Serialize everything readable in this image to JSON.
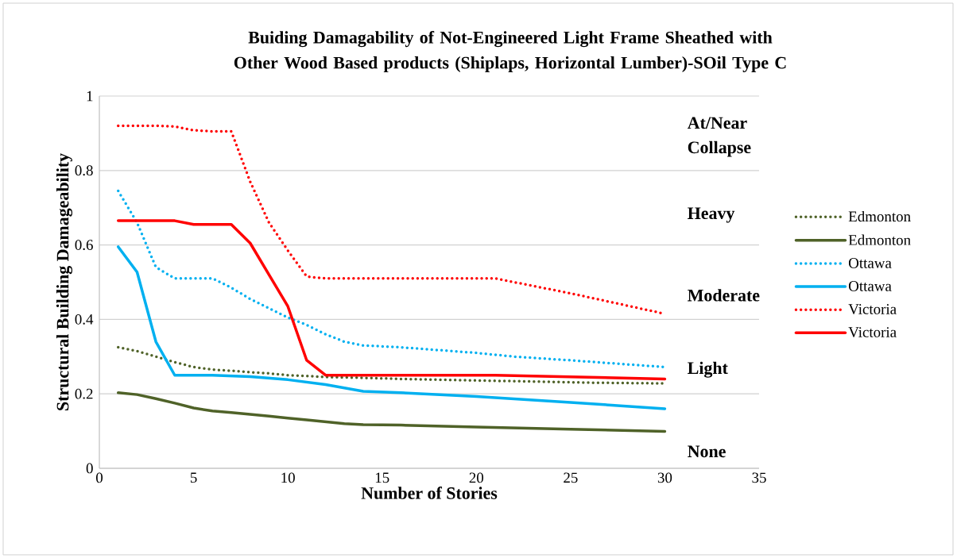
{
  "chart_data": {
    "type": "line",
    "title": "Buiding Damagability of Not-Engineered Light Frame Sheathed with Other Wood Based products (Shiplaps, Horizontal Lumber)-SOil Type C",
    "xlabel": "Number of Stories",
    "ylabel": "Structural Building Damageability",
    "xlim": [
      0,
      35
    ],
    "xticks": [
      0,
      5,
      10,
      15,
      20,
      25,
      30,
      35
    ],
    "ylim": [
      0,
      1
    ],
    "yticks": [
      0,
      0.2,
      0.4,
      0.6,
      0.8,
      1
    ],
    "grid": "y",
    "legend": "right",
    "annotations": [
      "At/Near Collapse",
      "Heavy",
      "Moderate",
      "Light",
      "None"
    ],
    "series": [
      {
        "name": "Edmonton",
        "color": "#4f6228",
        "line_style": "dotted",
        "x": [
          1,
          2,
          3,
          4,
          5,
          6,
          7,
          8,
          9,
          10,
          11,
          12,
          14,
          16,
          18,
          20,
          22,
          24,
          26,
          28,
          30
        ],
        "values": [
          0.325,
          0.315,
          0.3,
          0.285,
          0.272,
          0.265,
          0.262,
          0.258,
          0.255,
          0.25,
          0.248,
          0.245,
          0.243,
          0.24,
          0.238,
          0.236,
          0.234,
          0.232,
          0.23,
          0.229,
          0.228
        ]
      },
      {
        "name": "Edmonton",
        "color": "#4f6228",
        "line_style": "solid",
        "x": [
          1,
          2,
          3,
          4,
          5,
          6,
          7,
          8,
          9,
          10,
          11,
          12,
          13,
          14,
          16,
          20,
          25,
          30
        ],
        "values": [
          0.203,
          0.198,
          0.187,
          0.175,
          0.162,
          0.154,
          0.15,
          0.145,
          0.14,
          0.135,
          0.13,
          0.125,
          0.12,
          0.117,
          0.116,
          0.111,
          0.105,
          0.099
        ]
      },
      {
        "name": "Ottawa",
        "color": "#00b0f0",
        "line_style": "dotted",
        "x": [
          1,
          2,
          3,
          4,
          5,
          6,
          7,
          8,
          9,
          10,
          11,
          12,
          13,
          14,
          16,
          20,
          22,
          25,
          30
        ],
        "values": [
          0.745,
          0.66,
          0.54,
          0.51,
          0.51,
          0.51,
          0.485,
          0.455,
          0.43,
          0.405,
          0.385,
          0.36,
          0.34,
          0.33,
          0.325,
          0.31,
          0.3,
          0.29,
          0.272
        ]
      },
      {
        "name": "Ottawa",
        "color": "#00b0f0",
        "line_style": "solid",
        "x": [
          1,
          2,
          3,
          4,
          6,
          8,
          10,
          12,
          14,
          16,
          20,
          25,
          30
        ],
        "values": [
          0.595,
          0.527,
          0.34,
          0.25,
          0.25,
          0.246,
          0.238,
          0.225,
          0.207,
          0.203,
          0.193,
          0.177,
          0.16
        ]
      },
      {
        "name": "Victoria",
        "color": "#ff0000",
        "line_style": "dotted",
        "x": [
          1,
          2,
          3,
          4,
          5,
          6,
          7,
          8,
          9,
          10,
          11,
          12,
          14,
          21,
          25,
          30
        ],
        "values": [
          0.92,
          0.92,
          0.92,
          0.918,
          0.908,
          0.905,
          0.905,
          0.77,
          0.66,
          0.585,
          0.515,
          0.51,
          0.51,
          0.51,
          0.47,
          0.415
        ]
      },
      {
        "name": "Victoria",
        "color": "#ff0000",
        "line_style": "solid",
        "x": [
          1,
          4,
          5,
          7,
          8,
          9,
          10,
          11,
          12,
          21,
          30
        ],
        "values": [
          0.665,
          0.665,
          0.655,
          0.655,
          0.605,
          0.52,
          0.435,
          0.29,
          0.25,
          0.25,
          0.24
        ]
      }
    ]
  }
}
